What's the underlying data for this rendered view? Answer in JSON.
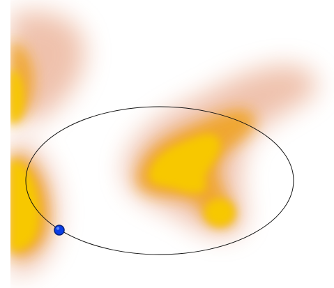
{
  "view": {
    "background": "#ffffff",
    "heat_colors": {
      "core": "#f7c806",
      "mid": "#f0a21a",
      "halo": "#e2906a"
    },
    "outline_color": "#111111",
    "handle_color": "#0b3de6",
    "handle_outline": "#08227a"
  },
  "selection": {
    "shape": "ellipse",
    "handle_icon": "control-point-dot"
  }
}
